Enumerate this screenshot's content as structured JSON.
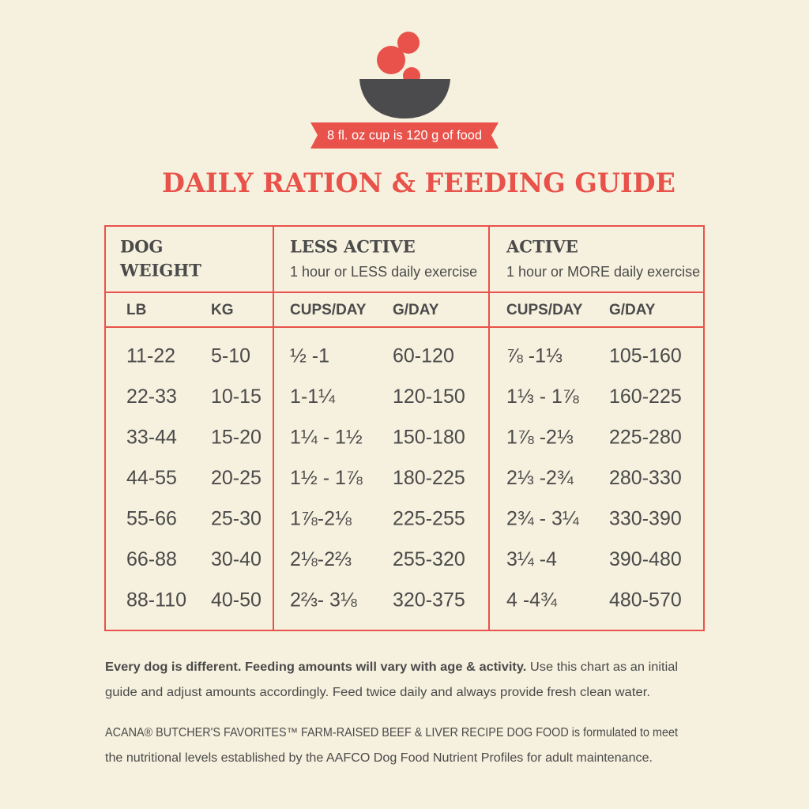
{
  "badge": "8 fl. oz cup is 120 g of food",
  "title": "DAILY RATION & FEEDING GUIDE",
  "table": {
    "groups": [
      {
        "title": [
          "DOG",
          "WEIGHT"
        ]
      },
      {
        "title": [
          "LESS ACTIVE"
        ],
        "subtitle": "1 hour or LESS daily exercise"
      },
      {
        "title": [
          "ACTIVE"
        ],
        "subtitle": "1 hour or MORE daily exercise"
      }
    ],
    "columns": [
      "LB",
      "KG",
      "CUPS/DAY",
      "G/DAY",
      "CUPS/DAY",
      "G/DAY"
    ],
    "rows": [
      [
        "11-22",
        "5-10",
        "½ -1",
        "60-120",
        "⅞ -1⅓",
        "105-160"
      ],
      [
        "22-33",
        "10-15",
        "1-1¼",
        "120-150",
        "1⅓ - 1⅞",
        "160-225"
      ],
      [
        "33-44",
        "15-20",
        "1¼ - 1½",
        "150-180",
        "1⅞ -2⅓",
        "225-280"
      ],
      [
        "44-55",
        "20-25",
        "1½ - 1⅞",
        "180-225",
        "2⅓ -2¾",
        "280-330"
      ],
      [
        "55-66",
        "25-30",
        "1⅞-2⅛",
        "225-255",
        "2¾ - 3¼",
        "330-390"
      ],
      [
        "66-88",
        "30-40",
        "2⅛-2⅔",
        "255-320",
        "3¼ -4",
        "390-480"
      ],
      [
        "88-110",
        "40-50",
        "2⅔- 3⅛",
        "320-375",
        "4 -4¾",
        "480-570"
      ]
    ]
  },
  "footer": {
    "note_bold": "Every dog is different. Feeding amounts will vary with age & activity.",
    "note_lines": [
      "Use this chart as an initial",
      "guide and adjust amounts accordingly. Feed twice daily and always provide fresh clean water."
    ],
    "product_lines": [
      "ACANA® BUTCHER'S FAVORITES™ FARM-RAISED BEEF & LIVER RECIPE DOG FOOD is formulated to meet",
      "the nutritional levels established by the AAFCO Dog Food Nutrient Profiles for adult maintenance."
    ]
  }
}
